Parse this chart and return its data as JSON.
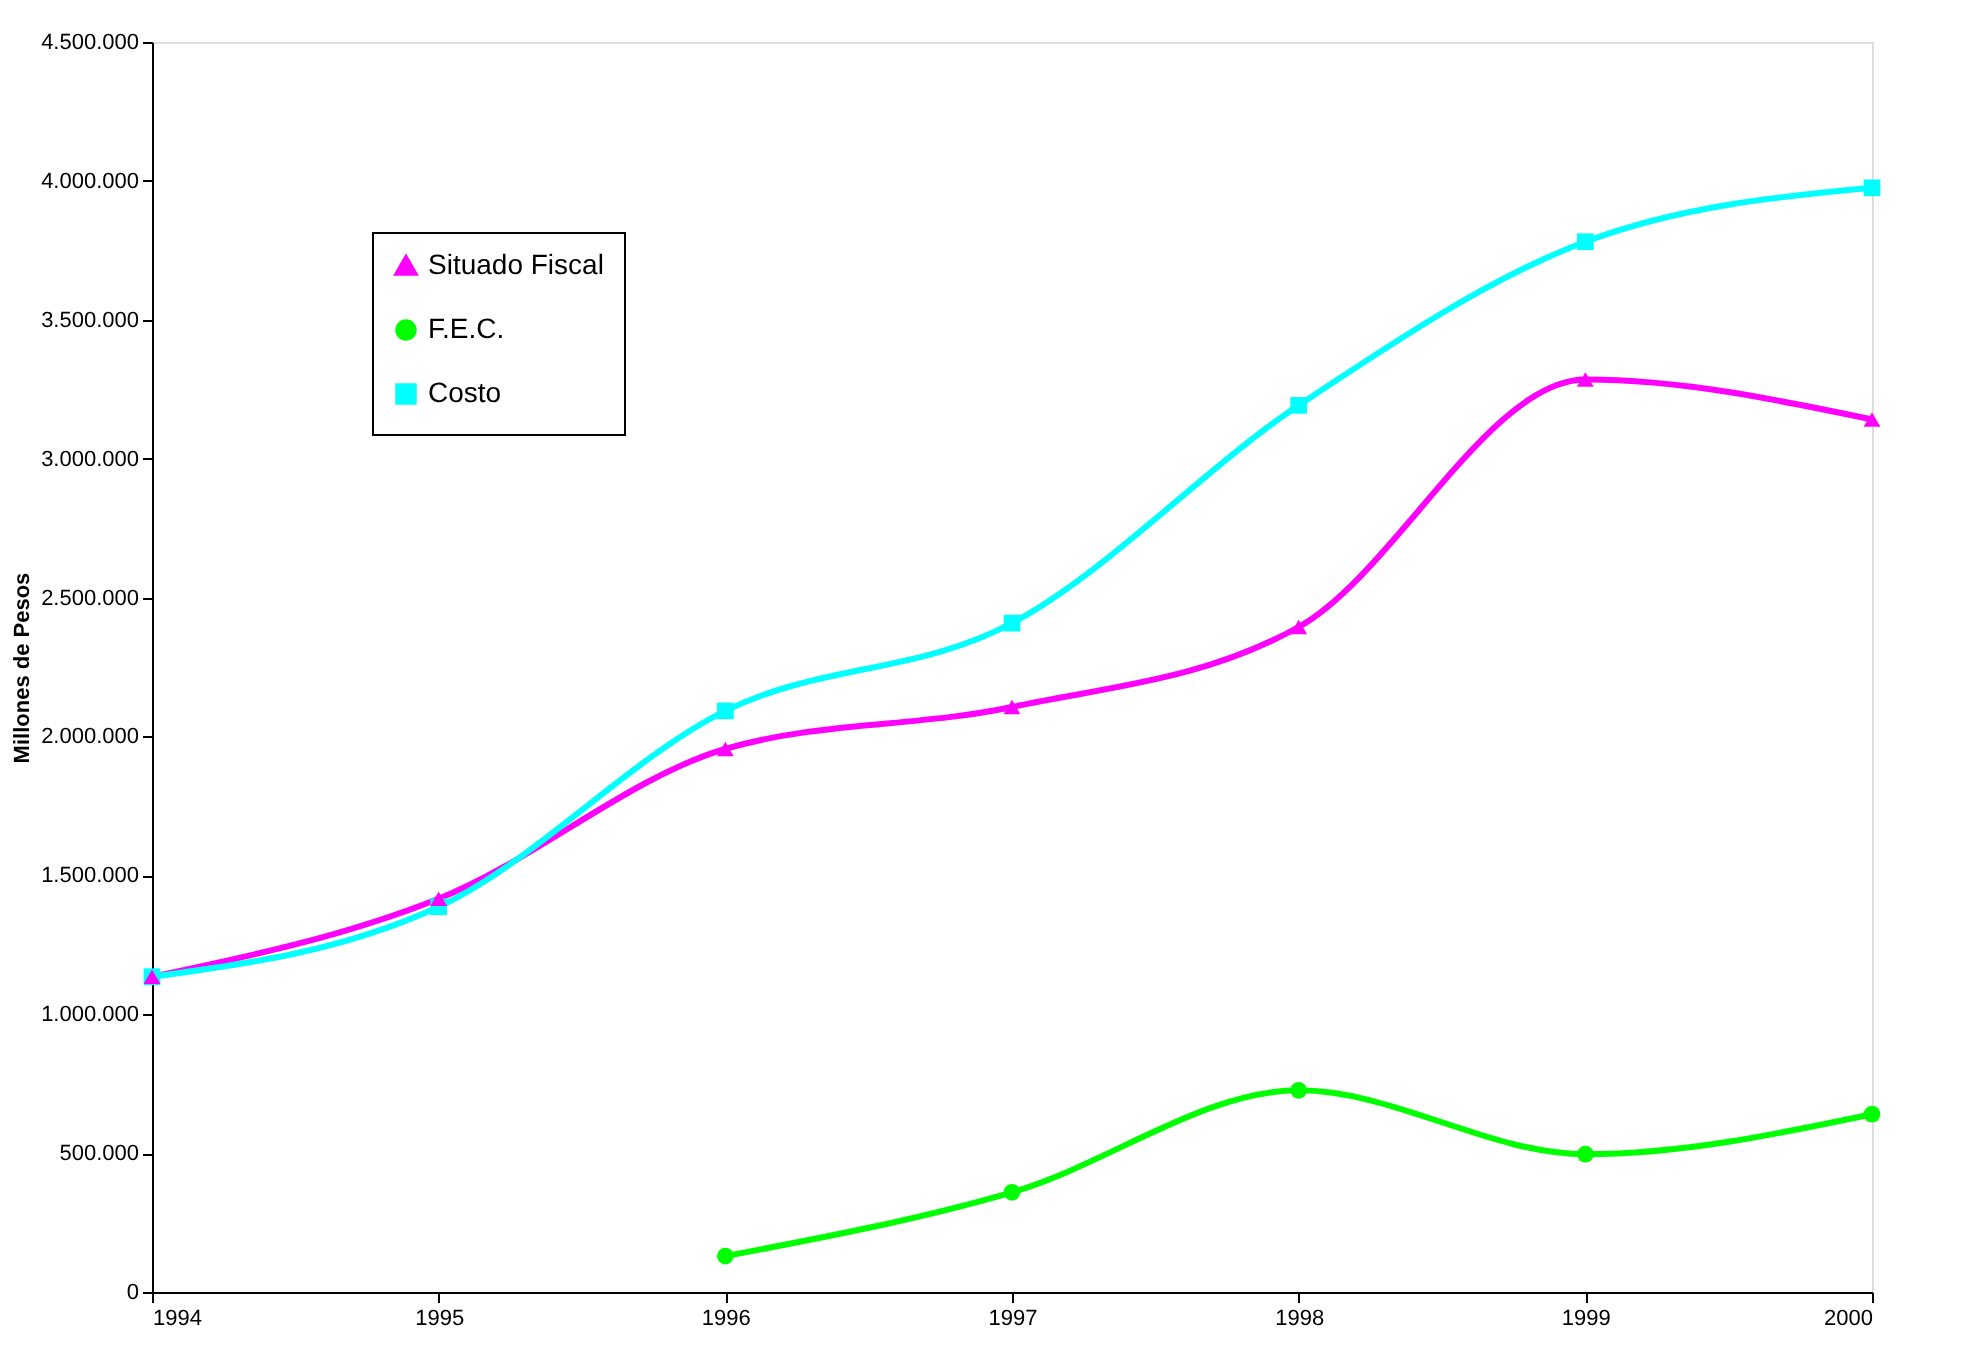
{
  "chart_data": {
    "type": "line",
    "ylabel": "Millones de Pesos",
    "x": [
      1994,
      1995,
      1996,
      1997,
      1998,
      1999,
      2000
    ],
    "series": [
      {
        "name": "Situado Fiscal",
        "color": "#ff00ff",
        "marker": "triangle",
        "values": [
          1135000,
          1416000,
          1955000,
          2106000,
          2394000,
          3285000,
          3141000
        ]
      },
      {
        "name": "F.E.C.",
        "color": "#00ff00",
        "marker": "circle",
        "values": [
          null,
          null,
          129000,
          359000,
          726000,
          496000,
          640000
        ]
      },
      {
        "name": "Costo",
        "color": "#00ffff",
        "marker": "square",
        "values": [
          1135000,
          1387000,
          2092000,
          2408000,
          3192000,
          3781000,
          3975000
        ]
      }
    ],
    "xlim": [
      1994,
      2000
    ],
    "xticks": [
      1994,
      1995,
      1996,
      1997,
      1998,
      1999,
      2000
    ],
    "ylim": [
      0,
      4500000
    ],
    "yticks": [
      {
        "value": 0,
        "label": "0"
      },
      {
        "value": 500000,
        "label": "500.000"
      },
      {
        "value": 1000000,
        "label": "1.000.000"
      },
      {
        "value": 1500000,
        "label": "1.500.000"
      },
      {
        "value": 2000000,
        "label": "2.000.000"
      },
      {
        "value": 2500000,
        "label": "2.500.000"
      },
      {
        "value": 3000000,
        "label": "3.000.000"
      },
      {
        "value": 3500000,
        "label": "3.500.000"
      },
      {
        "value": 4000000,
        "label": "4.000.000"
      },
      {
        "value": 4500000,
        "label": "4.500.000"
      }
    ],
    "grid": false,
    "legend": "top left",
    "line_style": "solid"
  }
}
